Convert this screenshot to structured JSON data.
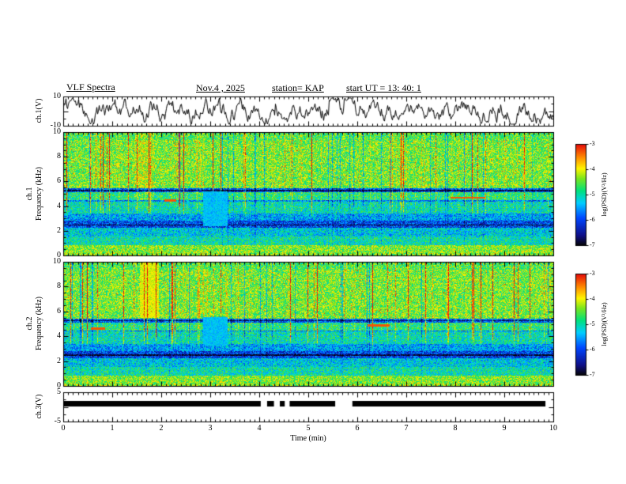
{
  "title": {
    "app": "VLF Spectra",
    "date": "Nov.4 , 2025",
    "station": "station= KAP",
    "start_ut": "start UT =  13: 40: 1"
  },
  "axes": {
    "x_label": "Time (min)",
    "x_ticks": [
      "0",
      "1",
      "2",
      "3",
      "4",
      "5",
      "6",
      "7",
      "8",
      "9",
      "10"
    ],
    "x_tick_values": [
      0,
      1,
      2,
      3,
      4,
      5,
      6,
      7,
      8,
      9,
      10
    ],
    "x_minor_tick_interval_min": 0.1,
    "ch1_wave": {
      "label": "ch.1(V)",
      "tick_labels": [
        "10",
        "-10"
      ],
      "tick_values": [
        10,
        -10
      ]
    },
    "spec1": {
      "label_line1": "ch.1",
      "label_line2": "Frequency (kHz)",
      "tick_labels": [
        "10",
        "8",
        "6",
        "4",
        "2",
        "0"
      ],
      "tick_values": [
        10,
        8,
        6,
        4,
        2,
        0
      ]
    },
    "spec2": {
      "label_line1": "ch.2",
      "label_line2": "Frequency (kHz)",
      "tick_labels": [
        "10",
        "8",
        "6",
        "4",
        "2",
        "0"
      ],
      "tick_values": [
        10,
        8,
        6,
        4,
        2,
        0
      ]
    },
    "ch3": {
      "label": "ch.3(V)",
      "tick_labels": [
        "5",
        "-5"
      ],
      "tick_values": [
        5,
        -5
      ]
    },
    "colorbar": {
      "label": "log(PSD)(V²/Hz)",
      "tick_labels": [
        "-3",
        "-4",
        "-5",
        "-6",
        "-7"
      ],
      "tick_values": [
        -3,
        -4,
        -5,
        -6,
        -7
      ]
    }
  },
  "colors": {
    "background": "#ffffff",
    "frame": "#000000",
    "text": "#000000"
  },
  "chart_data": [
    {
      "type": "line",
      "name": "ch1_waveform",
      "ylabel": "ch.1(V)",
      "ylim": [
        -10,
        10
      ],
      "xlim": [
        0,
        10
      ],
      "description": "continuous noisy broadband waveform centered on 0 V with excursions to about ±8 V over the full 10 minutes"
    },
    {
      "type": "heatmap",
      "name": "ch1_spectrogram",
      "ylabel": "ch.1 Frequency (kHz)",
      "ylim": [
        0,
        10
      ],
      "xlim": [
        0,
        10
      ],
      "zlabel": "log(PSD)(V²/Hz)",
      "zlim": [
        -7,
        -3
      ],
      "colorbar_ticks": [
        -3,
        -4,
        -5,
        -6,
        -7
      ],
      "patch": {
        "t": [
          2.85,
          3.35
        ],
        "f": [
          2.4,
          5.2
        ]
      },
      "features": [
        "green/yellow broadband background near -4.5",
        "impulsive red vertical streaks strongest 4-10 kHz",
        "dark attenuation band near 5.2 kHz",
        "blue low-power bands 2.2-3 kHz",
        "uniform cyan calibration patch around 3 min between 2.4 and 5.2 kHz",
        "orange horizontal tone near 4.7 kHz around 7.9-8.6 min"
      ]
    },
    {
      "type": "heatmap",
      "name": "ch2_spectrogram",
      "ylabel": "ch.2 Frequency (kHz)",
      "ylim": [
        0,
        10
      ],
      "xlim": [
        0,
        10
      ],
      "zlabel": "log(PSD)(V²/Hz)",
      "zlim": [
        -7,
        -3
      ],
      "colorbar_ticks": [
        -3,
        -4,
        -5,
        -6,
        -7
      ],
      "patch": {
        "t": [
          2.85,
          3.35
        ],
        "f": [
          3.3,
          5.6
        ]
      },
      "features": [
        "green/yellow broadband background near -4.5",
        "impulsive red vertical streaks strongest 4-10 kHz",
        "bright band 1.55-1.95 min above 5.5 kHz",
        "dark attenuation band near 5.2 kHz",
        "uniform cyan calibration patch around 3 min between 3.3 and 5.6 kHz"
      ]
    },
    {
      "type": "line",
      "name": "ch3_status",
      "ylabel": "ch.3(V)",
      "ylim": [
        -5,
        5
      ],
      "level": 1,
      "bar_halfwidth_volts": 1,
      "segments": [
        [
          0,
          4.03
        ],
        [
          4.16,
          4.3
        ],
        [
          4.42,
          4.52
        ],
        [
          4.62,
          5.55
        ],
        [
          5.9,
          9.84
        ]
      ],
      "description": "thick black status bar slightly above 0 V with short dropouts near 4.1, 4.35, 4.55 and 5.6-5.9 min"
    }
  ]
}
